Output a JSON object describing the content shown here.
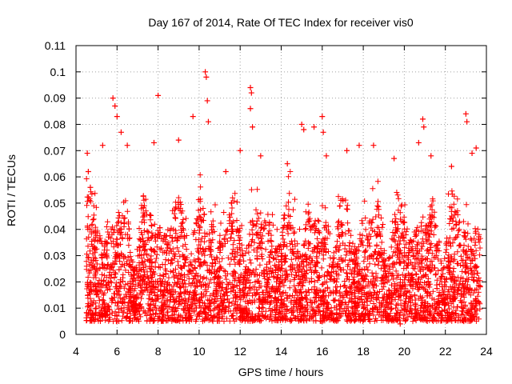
{
  "chart_data": {
    "type": "scatter",
    "title": "Day 167 of 2014, Rate Of TEC Index for receiver vis0",
    "xlabel": "GPS time / hours",
    "ylabel": "ROTI / TECUs",
    "xlim": [
      4,
      24
    ],
    "ylim": [
      0,
      0.11
    ],
    "xticks": [
      "4",
      "6",
      "8",
      "10",
      "12",
      "14",
      "16",
      "18",
      "20",
      "22",
      "24"
    ],
    "yticks": [
      "0",
      "0.01",
      "0.02",
      "0.03",
      "0.04",
      "0.05",
      "0.06",
      "0.07",
      "0.08",
      "0.09",
      "0.1",
      "0.11"
    ],
    "grid": true,
    "marker": "+",
    "series": [
      {
        "name": "ROTI",
        "color": "#ff0000",
        "x_range": [
          4.5,
          23.7
        ],
        "typical_range": [
          0.005,
          0.05
        ],
        "points": [
          {
            "x": 4.55,
            "y": 0.069
          },
          {
            "x": 4.6,
            "y": 0.062
          },
          {
            "x": 4.7,
            "y": 0.056
          },
          {
            "x": 5.3,
            "y": 0.072
          },
          {
            "x": 5.8,
            "y": 0.09
          },
          {
            "x": 5.9,
            "y": 0.087
          },
          {
            "x": 6.0,
            "y": 0.083
          },
          {
            "x": 6.2,
            "y": 0.077
          },
          {
            "x": 6.5,
            "y": 0.072
          },
          {
            "x": 7.8,
            "y": 0.073
          },
          {
            "x": 8.0,
            "y": 0.091
          },
          {
            "x": 9.0,
            "y": 0.074
          },
          {
            "x": 9.7,
            "y": 0.083
          },
          {
            "x": 10.3,
            "y": 0.1
          },
          {
            "x": 10.35,
            "y": 0.098
          },
          {
            "x": 10.4,
            "y": 0.089
          },
          {
            "x": 10.45,
            "y": 0.081
          },
          {
            "x": 11.3,
            "y": 0.062
          },
          {
            "x": 12.0,
            "y": 0.07
          },
          {
            "x": 12.5,
            "y": 0.094
          },
          {
            "x": 12.55,
            "y": 0.092
          },
          {
            "x": 12.5,
            "y": 0.086
          },
          {
            "x": 12.6,
            "y": 0.079
          },
          {
            "x": 13.0,
            "y": 0.068
          },
          {
            "x": 14.3,
            "y": 0.065
          },
          {
            "x": 15.0,
            "y": 0.08
          },
          {
            "x": 15.1,
            "y": 0.078
          },
          {
            "x": 15.6,
            "y": 0.079
          },
          {
            "x": 16.0,
            "y": 0.083
          },
          {
            "x": 16.05,
            "y": 0.077
          },
          {
            "x": 16.2,
            "y": 0.068
          },
          {
            "x": 17.2,
            "y": 0.07
          },
          {
            "x": 17.8,
            "y": 0.072
          },
          {
            "x": 18.5,
            "y": 0.072
          },
          {
            "x": 19.5,
            "y": 0.067
          },
          {
            "x": 20.7,
            "y": 0.073
          },
          {
            "x": 20.9,
            "y": 0.082
          },
          {
            "x": 20.95,
            "y": 0.079
          },
          {
            "x": 21.3,
            "y": 0.068
          },
          {
            "x": 22.3,
            "y": 0.064
          },
          {
            "x": 23.0,
            "y": 0.084
          },
          {
            "x": 23.05,
            "y": 0.081
          },
          {
            "x": 23.3,
            "y": 0.069
          },
          {
            "x": 23.5,
            "y": 0.071
          },
          {
            "x": 19.8,
            "y": 0.004
          },
          {
            "x": 16.0,
            "y": 0.005
          },
          {
            "x": 22.9,
            "y": 0.005
          },
          {
            "x": 10.3,
            "y": 0.006
          }
        ]
      }
    ]
  }
}
